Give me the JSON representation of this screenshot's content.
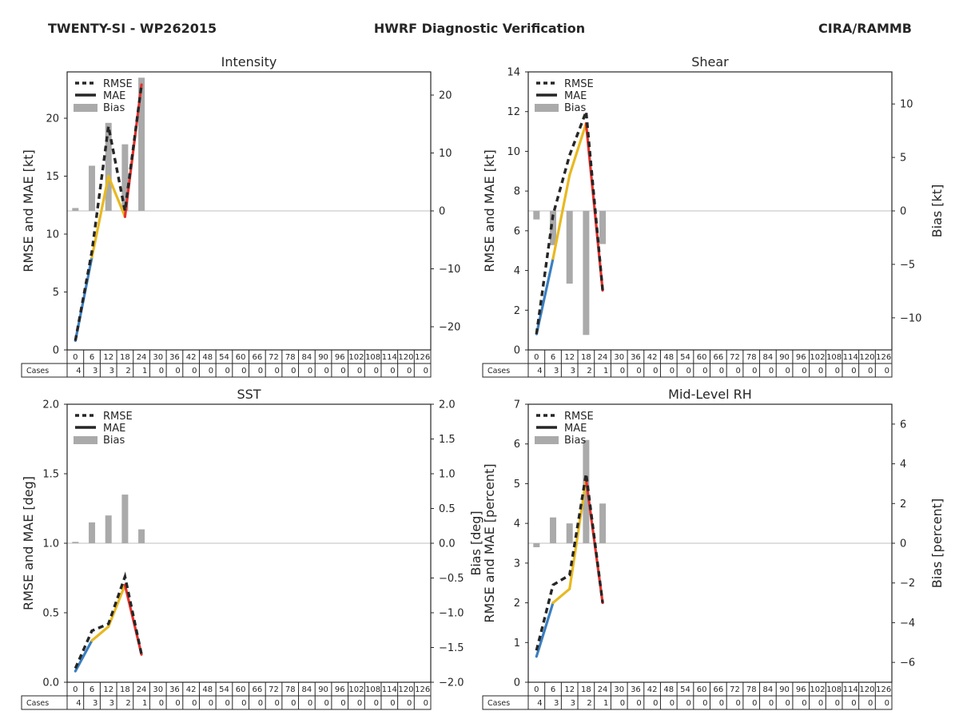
{
  "header": {
    "left": "TWENTY-SI - WP262015",
    "center": "HWRF Diagnostic Verification",
    "right": "CIRA/RAMMB"
  },
  "colors": {
    "rmse": "#262626",
    "bias": "#aaaaaa",
    "seg_blue": "#3a7fc1",
    "seg_yellow": "#e8b920",
    "seg_red": "#e8302a",
    "zero_line": "#bfbfbf"
  },
  "legend": {
    "rmse": "RMSE",
    "mae": "MAE",
    "bias": "Bias"
  },
  "cases_label": "Cases",
  "lead_hours": [
    "0",
    "6",
    "12",
    "18",
    "24",
    "30",
    "36",
    "42",
    "48",
    "54",
    "60",
    "66",
    "72",
    "78",
    "84",
    "90",
    "96",
    "102",
    "108",
    "114",
    "120",
    "126"
  ],
  "cases": [
    4,
    3,
    3,
    2,
    1,
    0,
    0,
    0,
    0,
    0,
    0,
    0,
    0,
    0,
    0,
    0,
    0,
    0,
    0,
    0,
    0,
    0
  ],
  "chart_data": [
    {
      "type": "line",
      "title": "Intensity",
      "ylabel": "RMSE and MAE [kt]",
      "ylabel2": "",
      "ylim": [
        0,
        24
      ],
      "yticks": [
        0,
        5,
        10,
        15,
        20
      ],
      "y2lim": [
        -24,
        24
      ],
      "y2ticks": [
        -20,
        -10,
        0,
        10,
        20
      ],
      "y2ticklabels": [
        "−20",
        "−10",
        "0",
        "10",
        "20"
      ],
      "x": [
        0,
        6,
        12,
        18,
        24
      ],
      "series": [
        {
          "name": "RMSE",
          "values": [
            0.8,
            8.5,
            19.3,
            12.0,
            22.9
          ]
        },
        {
          "name": "MAE",
          "values": [
            0.8,
            8.0,
            15.0,
            11.5,
            22.9
          ]
        },
        {
          "name": "Bias",
          "axis": "right",
          "values": [
            0.5,
            7.8,
            15.2,
            11.5,
            23.0
          ]
        }
      ]
    },
    {
      "type": "line",
      "title": "Shear",
      "ylabel": "RMSE and MAE [kt]",
      "ylabel2": "Bias [kt]",
      "ylim": [
        0,
        14
      ],
      "yticks": [
        0,
        2,
        4,
        6,
        8,
        10,
        12,
        14
      ],
      "y2lim": [
        -13,
        13
      ],
      "y2ticks": [
        -10,
        -5,
        0,
        5,
        10
      ],
      "y2ticklabels": [
        "−10",
        "−5",
        "0",
        "5",
        "10"
      ],
      "x": [
        0,
        6,
        12,
        18,
        24
      ],
      "series": [
        {
          "name": "RMSE",
          "values": [
            0.8,
            6.8,
            9.8,
            12.0,
            3.0
          ]
        },
        {
          "name": "MAE",
          "values": [
            0.8,
            4.6,
            8.8,
            11.4,
            3.0
          ]
        },
        {
          "name": "Bias",
          "axis": "right",
          "values": [
            -0.8,
            -3.2,
            -6.8,
            -11.6,
            -3.1
          ]
        }
      ]
    },
    {
      "type": "line",
      "title": "SST",
      "ylabel": "RMSE and MAE [deg]",
      "ylabel2": "Bias [deg]",
      "ylim": [
        0,
        2.0
      ],
      "yticks": [
        0,
        0.5,
        1.0,
        1.5,
        2.0
      ],
      "yticklabels": [
        "0.0",
        "0.5",
        "1.0",
        "1.5",
        "2.0"
      ],
      "y2lim": [
        -2.0,
        2.0
      ],
      "y2ticks": [
        -2.0,
        -1.5,
        -1.0,
        -0.5,
        0,
        0.5,
        1.0,
        1.5,
        2.0
      ],
      "y2ticklabels": [
        "−2.0",
        "−1.5",
        "−1.0",
        "−0.5",
        "0.0",
        "0.5",
        "1.0",
        "1.5",
        "2.0"
      ],
      "x": [
        0,
        6,
        12,
        18,
        24
      ],
      "series": [
        {
          "name": "RMSE",
          "values": [
            0.1,
            0.37,
            0.42,
            0.76,
            0.2
          ]
        },
        {
          "name": "MAE",
          "values": [
            0.08,
            0.3,
            0.4,
            0.7,
            0.2
          ]
        },
        {
          "name": "Bias",
          "axis": "right",
          "values": [
            0.02,
            0.3,
            0.4,
            0.7,
            0.2
          ]
        }
      ]
    },
    {
      "type": "line",
      "title": "Mid-Level RH",
      "ylabel": "RMSE and MAE [percent]",
      "ylabel2": "Bias [percent]",
      "ylim": [
        0,
        7
      ],
      "yticks": [
        0,
        1,
        2,
        3,
        4,
        5,
        6,
        7
      ],
      "y2lim": [
        -7,
        7
      ],
      "y2ticks": [
        -6,
        -4,
        -2,
        0,
        2,
        4,
        6
      ],
      "y2ticklabels": [
        "−6",
        "−4",
        "−2",
        "0",
        "2",
        "4",
        "6"
      ],
      "x": [
        0,
        6,
        12,
        18,
        24
      ],
      "series": [
        {
          "name": "RMSE",
          "values": [
            0.8,
            2.45,
            2.7,
            5.25,
            2.0
          ]
        },
        {
          "name": "MAE",
          "values": [
            0.65,
            2.0,
            2.35,
            5.1,
            2.0
          ]
        },
        {
          "name": "Bias",
          "axis": "right",
          "values": [
            -0.2,
            1.3,
            1.0,
            5.2,
            2.0
          ]
        }
      ]
    }
  ]
}
